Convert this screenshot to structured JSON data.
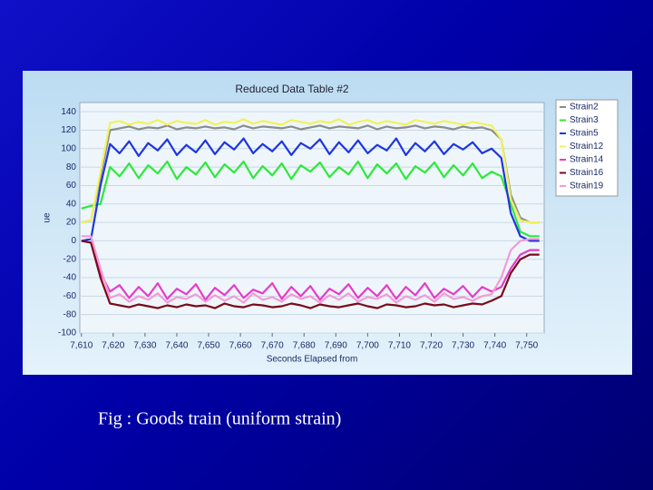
{
  "chart_data": {
    "type": "line",
    "title": "Reduced Data Table #2",
    "x_label": "Seconds Elapsed from",
    "y_label": "ue",
    "x": [
      7610,
      7613,
      7616,
      7619,
      7622,
      7625,
      7628,
      7631,
      7634,
      7637,
      7640,
      7643,
      7646,
      7649,
      7652,
      7655,
      7658,
      7661,
      7664,
      7667,
      7670,
      7673,
      7676,
      7679,
      7682,
      7685,
      7688,
      7691,
      7694,
      7697,
      7700,
      7703,
      7706,
      7709,
      7712,
      7715,
      7718,
      7721,
      7724,
      7727,
      7730,
      7733,
      7736,
      7739,
      7742,
      7745,
      7748,
      7751,
      7754
    ],
    "series": [
      {
        "name": "Strain2",
        "color": "#8c8c8c",
        "values": [
          20,
          22,
          70,
          120,
          122,
          124,
          121,
          123,
          122,
          125,
          121,
          123,
          122,
          124,
          122,
          123,
          121,
          125,
          122,
          124,
          123,
          122,
          124,
          121,
          123,
          125,
          122,
          124,
          123,
          122,
          125,
          121,
          124,
          122,
          123,
          125,
          122,
          124,
          123,
          121,
          124,
          122,
          123,
          120,
          110,
          50,
          25,
          20,
          20
        ]
      },
      {
        "name": "Strain3",
        "color": "#2ee83a",
        "values": [
          35,
          38,
          40,
          80,
          70,
          84,
          68,
          82,
          73,
          86,
          67,
          80,
          72,
          85,
          69,
          83,
          74,
          86,
          68,
          81,
          71,
          84,
          67,
          82,
          75,
          85,
          69,
          80,
          72,
          86,
          68,
          83,
          73,
          84,
          67,
          81,
          74,
          85,
          69,
          82,
          71,
          84,
          68,
          75,
          70,
          40,
          10,
          5,
          5
        ]
      },
      {
        "name": "Strain5",
        "color": "#1f35e0",
        "values": [
          0,
          2,
          60,
          105,
          95,
          108,
          92,
          106,
          98,
          110,
          93,
          104,
          96,
          109,
          94,
          107,
          99,
          111,
          95,
          105,
          97,
          108,
          93,
          106,
          100,
          110,
          94,
          107,
          96,
          109,
          95,
          104,
          98,
          111,
          93,
          106,
          97,
          108,
          94,
          105,
          99,
          107,
          95,
          100,
          90,
          30,
          5,
          0,
          0
        ]
      },
      {
        "name": "Strain12",
        "color": "#f2f25a",
        "values": [
          20,
          22,
          75,
          128,
          130,
          126,
          129,
          127,
          131,
          126,
          130,
          128,
          127,
          131,
          126,
          129,
          128,
          132,
          127,
          130,
          128,
          126,
          131,
          129,
          127,
          130,
          128,
          132,
          126,
          129,
          131,
          127,
          130,
          128,
          126,
          131,
          129,
          127,
          130,
          128,
          126,
          129,
          127,
          125,
          110,
          45,
          22,
          20,
          20
        ]
      },
      {
        "name": "Strain14",
        "color": "#e63cc8",
        "values": [
          0,
          -2,
          -35,
          -55,
          -48,
          -62,
          -50,
          -60,
          -46,
          -63,
          -52,
          -58,
          -47,
          -64,
          -51,
          -59,
          -48,
          -62,
          -53,
          -57,
          -46,
          -63,
          -50,
          -60,
          -49,
          -64,
          -52,
          -58,
          -47,
          -62,
          -51,
          -60,
          -48,
          -63,
          -50,
          -59,
          -46,
          -62,
          -52,
          -58,
          -49,
          -61,
          -50,
          -55,
          -50,
          -30,
          -15,
          -10,
          -10
        ]
      },
      {
        "name": "Strain16",
        "color": "#7a0a1a",
        "values": [
          0,
          -2,
          -40,
          -68,
          -70,
          -72,
          -69,
          -71,
          -73,
          -70,
          -72,
          -69,
          -71,
          -70,
          -73,
          -68,
          -71,
          -72,
          -69,
          -70,
          -72,
          -71,
          -68,
          -70,
          -73,
          -69,
          -71,
          -72,
          -70,
          -68,
          -71,
          -73,
          -69,
          -70,
          -72,
          -71,
          -68,
          -70,
          -69,
          -72,
          -70,
          -68,
          -69,
          -65,
          -60,
          -35,
          -20,
          -15,
          -15
        ]
      },
      {
        "name": "Strain19",
        "color": "#f59ad6",
        "values": [
          5,
          5,
          -30,
          -62,
          -58,
          -66,
          -60,
          -64,
          -57,
          -67,
          -61,
          -63,
          -58,
          -66,
          -59,
          -65,
          -60,
          -67,
          -57,
          -64,
          -61,
          -66,
          -58,
          -63,
          -60,
          -67,
          -59,
          -64,
          -57,
          -66,
          -61,
          -63,
          -58,
          -67,
          -60,
          -64,
          -59,
          -66,
          -57,
          -63,
          -61,
          -65,
          -60,
          -58,
          -40,
          -10,
          0,
          2,
          2
        ]
      }
    ],
    "xlim": [
      7609.5,
      7755.5
    ],
    "ylim": [
      -100,
      150
    ],
    "xticks": [
      {
        "value": 7610,
        "label": "7,610"
      },
      {
        "value": 7620,
        "label": "7,620"
      },
      {
        "value": 7630,
        "label": "7,630"
      },
      {
        "value": 7640,
        "label": "7,640"
      },
      {
        "value": 7650,
        "label": "7,650"
      },
      {
        "value": 7660,
        "label": "7,660"
      },
      {
        "value": 7670,
        "label": "7,670"
      },
      {
        "value": 7680,
        "label": "7,680"
      },
      {
        "value": 7690,
        "label": "7,690"
      },
      {
        "value": 7700,
        "label": "7,700"
      },
      {
        "value": 7710,
        "label": "7,710"
      },
      {
        "value": 7720,
        "label": "7,720"
      },
      {
        "value": 7730,
        "label": "7,730"
      },
      {
        "value": 7740,
        "label": "7,740"
      },
      {
        "value": 7750,
        "label": "7,750"
      }
    ],
    "yticks": [
      -100,
      -80,
      -60,
      -40,
      -20,
      0,
      20,
      40,
      60,
      80,
      100,
      120,
      140
    ],
    "grid": true,
    "legend": "right"
  },
  "caption": "Fig : Goods train  (uniform strain)"
}
